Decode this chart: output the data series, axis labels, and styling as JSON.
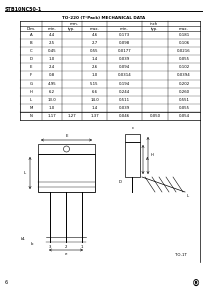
{
  "header_text": "STB10NC50-1",
  "title": "TO-220 (T°Pack) MECHANICAL DATA",
  "table_rows": [
    [
      "A",
      "4.4",
      "",
      "4.6",
      "0.173",
      "",
      "0.181"
    ],
    [
      "B",
      "2.5",
      "",
      "2.7",
      "0.098",
      "",
      "0.106"
    ],
    [
      "C",
      "0.45",
      "",
      "0.55",
      "0.0177",
      "",
      "0.0216"
    ],
    [
      "D",
      "1.0",
      "",
      "1.4",
      "0.039",
      "",
      "0.055"
    ],
    [
      "E",
      "2.4",
      "",
      "2.6",
      "0.094",
      "",
      "0.102"
    ],
    [
      "F",
      "0.8",
      "",
      "1.0",
      "0.0314",
      "",
      "0.0394"
    ],
    [
      "G",
      "4.95",
      "",
      "5.15",
      "0.194",
      "",
      "0.202"
    ],
    [
      "H",
      "6.2",
      "",
      "6.6",
      "0.244",
      "",
      "0.260"
    ],
    [
      "L",
      "13.0",
      "",
      "14.0",
      "0.511",
      "",
      "0.551"
    ],
    [
      "M",
      "1.0",
      "",
      "1.4",
      "0.039",
      "",
      "0.055"
    ]
  ],
  "table_last_row": [
    "N",
    "1.17",
    "1.27",
    "1.37",
    "0.046",
    "0.050",
    "0.054"
  ],
  "page_number": "6",
  "logo": "®",
  "bg_color": "#ffffff",
  "text_color": "#000000",
  "line_color": "#000000"
}
